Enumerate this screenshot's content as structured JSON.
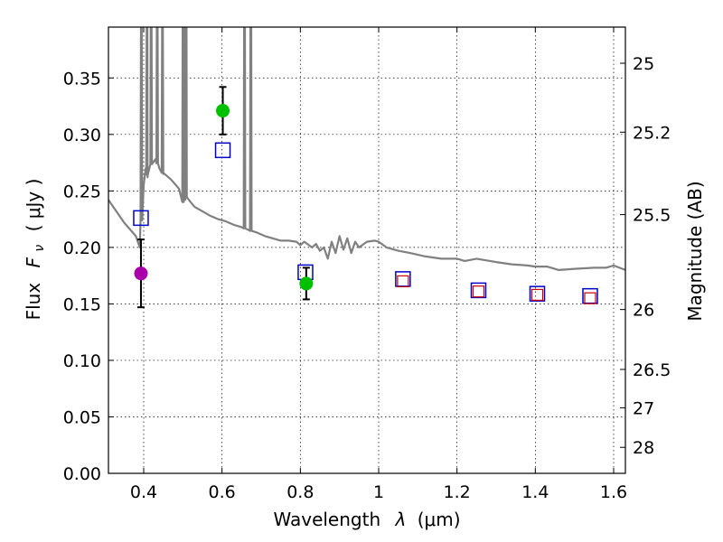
{
  "chart_data": {
    "type": "scatter",
    "xlabel_text": "Wavelength",
    "xlabel_symbol": "λ",
    "xlabel_unit": "(μm)",
    "ylabel_text": "Flux",
    "ylabel_symbol": "F",
    "ylabel_subscript": "ν",
    "ylabel_unit": "( μJy )",
    "y2label": "Magnitude (AB)",
    "xlim": [
      0.31,
      1.63
    ],
    "ylim": [
      0.0,
      0.395
    ],
    "grid": true,
    "x_ticks": [
      0.4,
      0.6,
      0.8,
      1.0,
      1.2,
      1.4,
      1.6
    ],
    "x_tick_labels": [
      "0.4",
      "0.6",
      "0.8",
      "1",
      "1.2",
      "1.4",
      "1.6"
    ],
    "y_ticks": [
      0.0,
      0.05,
      0.1,
      0.15,
      0.2,
      0.25,
      0.3,
      0.35
    ],
    "y_tick_labels": [
      "0.00",
      "0.05",
      "0.10",
      "0.15",
      "0.20",
      "0.25",
      "0.30",
      "0.35"
    ],
    "y2_ticks": [
      {
        "label": "25",
        "flux": 0.363
      },
      {
        "label": "25.2",
        "flux": 0.302
      },
      {
        "label": "25.5",
        "flux": 0.229
      },
      {
        "label": "26",
        "flux": 0.145
      },
      {
        "label": "26.5",
        "flux": 0.092
      },
      {
        "label": "27",
        "flux": 0.058
      },
      {
        "label": "28",
        "flux": 0.023
      }
    ],
    "series": [
      {
        "name": "model spectrum",
        "kind": "line",
        "color": "#808080",
        "points": [
          [
            0.31,
            0.242
          ],
          [
            0.33,
            0.232
          ],
          [
            0.35,
            0.222
          ],
          [
            0.37,
            0.214
          ],
          [
            0.38,
            0.21
          ],
          [
            0.39,
            0.2
          ],
          [
            0.395,
            0.23
          ],
          [
            0.4,
            0.255
          ],
          [
            0.405,
            0.27
          ],
          [
            0.41,
            0.262
          ],
          [
            0.42,
            0.275
          ],
          [
            0.43,
            0.278
          ],
          [
            0.44,
            0.27
          ],
          [
            0.45,
            0.265
          ],
          [
            0.47,
            0.26
          ],
          [
            0.49,
            0.252
          ],
          [
            0.5,
            0.24
          ],
          [
            0.51,
            0.245
          ],
          [
            0.52,
            0.24
          ],
          [
            0.53,
            0.236
          ],
          [
            0.55,
            0.232
          ],
          [
            0.57,
            0.228
          ],
          [
            0.59,
            0.225
          ],
          [
            0.61,
            0.223
          ],
          [
            0.63,
            0.22
          ],
          [
            0.65,
            0.218
          ],
          [
            0.67,
            0.215
          ],
          [
            0.69,
            0.213
          ],
          [
            0.71,
            0.21
          ],
          [
            0.73,
            0.208
          ],
          [
            0.75,
            0.206
          ],
          [
            0.77,
            0.206
          ],
          [
            0.79,
            0.205
          ],
          [
            0.8,
            0.202
          ],
          [
            0.81,
            0.205
          ],
          [
            0.83,
            0.2
          ],
          [
            0.84,
            0.203
          ],
          [
            0.85,
            0.197
          ],
          [
            0.86,
            0.2
          ],
          [
            0.87,
            0.19
          ],
          [
            0.88,
            0.205
          ],
          [
            0.89,
            0.195
          ],
          [
            0.9,
            0.21
          ],
          [
            0.91,
            0.198
          ],
          [
            0.92,
            0.208
          ],
          [
            0.93,
            0.195
          ],
          [
            0.94,
            0.205
          ],
          [
            0.95,
            0.2
          ],
          [
            0.97,
            0.205
          ],
          [
            0.99,
            0.206
          ],
          [
            1.0,
            0.205
          ],
          [
            1.02,
            0.2
          ],
          [
            1.05,
            0.197
          ],
          [
            1.08,
            0.195
          ],
          [
            1.12,
            0.192
          ],
          [
            1.16,
            0.19
          ],
          [
            1.2,
            0.19
          ],
          [
            1.22,
            0.188
          ],
          [
            1.25,
            0.19
          ],
          [
            1.3,
            0.187
          ],
          [
            1.34,
            0.185
          ],
          [
            1.38,
            0.184
          ],
          [
            1.4,
            0.183
          ],
          [
            1.43,
            0.183
          ],
          [
            1.46,
            0.18
          ],
          [
            1.5,
            0.181
          ],
          [
            1.55,
            0.182
          ],
          [
            1.58,
            0.182
          ],
          [
            1.6,
            0.184
          ],
          [
            1.63,
            0.18
          ]
        ],
        "spikes": [
          {
            "x": 0.394,
            "top": 0.395
          },
          {
            "x": 0.4085,
            "top": 0.395
          },
          {
            "x": 0.419,
            "top": 0.395
          },
          {
            "x": 0.4345,
            "top": 0.395
          },
          {
            "x": 0.448,
            "top": 0.395
          },
          {
            "x": 0.5005,
            "top": 0.395
          },
          {
            "x": 0.5045,
            "top": 0.395
          },
          {
            "x": 0.5085,
            "top": 0.395
          },
          {
            "x": 0.6575,
            "top": 0.395
          },
          {
            "x": 0.6735,
            "top": 0.395
          }
        ]
      },
      {
        "name": "model magnitudes",
        "kind": "open-square",
        "color": "#0000cc",
        "points": [
          [
            0.393,
            0.226
          ],
          [
            0.602,
            0.286
          ],
          [
            0.813,
            0.178
          ],
          [
            1.062,
            0.172
          ],
          [
            1.255,
            0.162
          ],
          [
            1.405,
            0.159
          ],
          [
            1.54,
            0.157
          ]
        ]
      },
      {
        "name": "inner squares",
        "kind": "open-square-small",
        "color": "#cc0000",
        "points": [
          [
            1.062,
            0.17
          ],
          [
            1.255,
            0.161
          ],
          [
            1.405,
            0.158
          ],
          [
            1.54,
            0.155
          ]
        ]
      },
      {
        "name": "observed (green)",
        "kind": "filled-circle",
        "color": "#00c000",
        "points": [
          [
            0.602,
            0.321,
            0.021
          ],
          [
            0.815,
            0.168,
            0.014
          ]
        ]
      },
      {
        "name": "observed (magenta)",
        "kind": "filled-circle",
        "color": "#aa00aa",
        "points": [
          [
            0.393,
            0.177,
            0.03
          ]
        ]
      }
    ]
  }
}
